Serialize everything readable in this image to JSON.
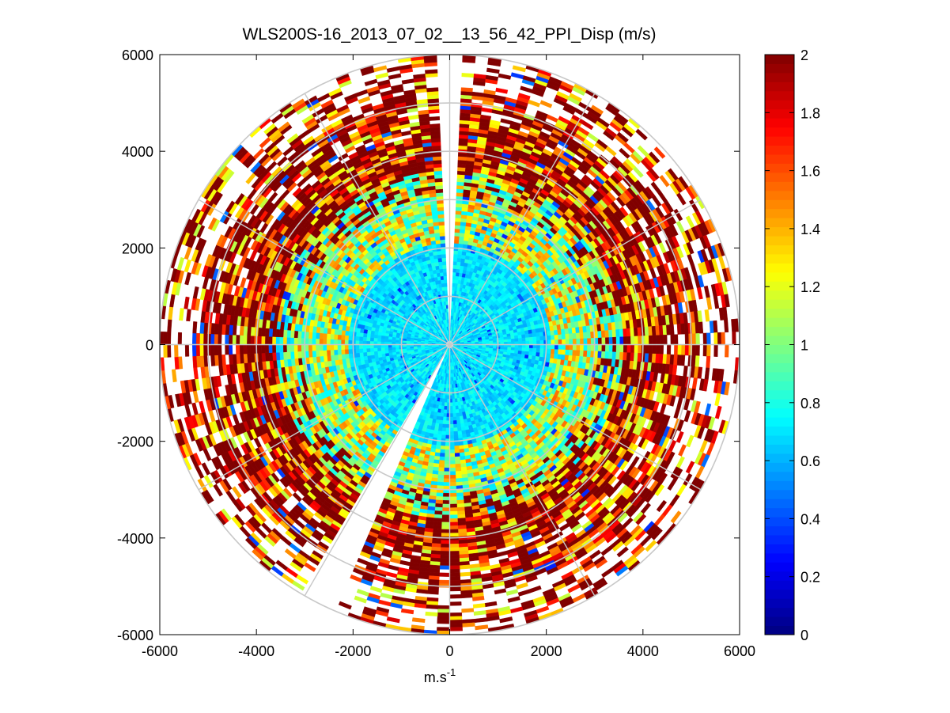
{
  "chart_data": {
    "type": "heatmap",
    "subtype": "polar-ppi",
    "title": "WLS200S-16_2013_07_02__13_56_42_PPI_Disp (m/s)",
    "xlabel_base": "m.s",
    "xlabel_sup": "-1",
    "ylabel": "",
    "xlim": [
      -6000,
      6000
    ],
    "ylim": [
      -6000,
      6000
    ],
    "xticks": [
      -6000,
      -4000,
      -2000,
      0,
      2000,
      4000,
      6000
    ],
    "yticks": [
      -6000,
      -4000,
      -2000,
      0,
      2000,
      4000,
      6000
    ],
    "xtick_labels": [
      "-6000",
      "-4000",
      "-2000",
      "0",
      "2000",
      "4000",
      "6000"
    ],
    "ytick_labels": [
      "-6000",
      "-4000",
      "-2000",
      "0",
      "2000",
      "4000",
      "6000"
    ],
    "max_range": 6000,
    "range_rings": [
      1000,
      2000,
      3000,
      4000,
      5000,
      6000
    ],
    "spoke_interval_deg": 30,
    "gap_sectors_deg": [
      [
        -3.5,
        3.5
      ],
      [
        202,
        211
      ]
    ],
    "colorbar": {
      "colormap": "jet",
      "clim": [
        0,
        2
      ],
      "ticks": [
        0,
        0.2,
        0.4,
        0.6,
        0.8,
        1,
        1.2,
        1.4,
        1.6,
        1.8,
        2
      ],
      "tick_labels": [
        "0",
        "0.2",
        "0.4",
        "0.6",
        "0.8",
        "1",
        "1.2",
        "1.4",
        "1.6",
        "1.8",
        "2"
      ]
    },
    "field_description": {
      "near_range_mean": 0.7,
      "mid_range_mean": 1.1,
      "far_range_mean": 1.7,
      "note": "Dispersion values increase with range: cyan near center, mixed green/yellow mid-range, dark red toward outer edge; sparse coverage beyond ~5000 m"
    }
  }
}
